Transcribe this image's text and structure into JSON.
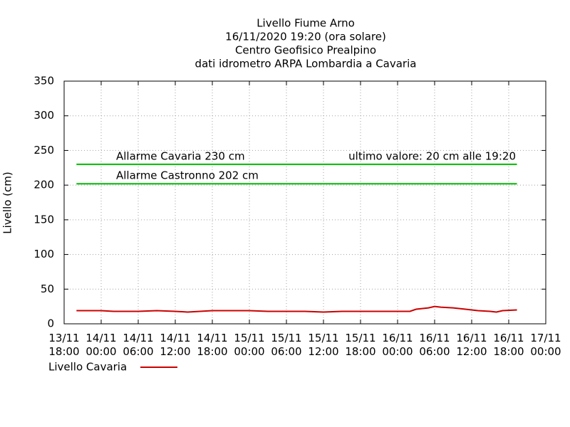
{
  "chart_data": {
    "type": "line",
    "title": [
      "Livello Fiume Arno",
      "16/11/2020 19:20 (ora solare)",
      "Centro Geofisico Prealpino",
      "dati idrometro ARPA Lombardia a Cavaria"
    ],
    "y_label": "Livello (cm)",
    "x": [
      "13/11 20:00",
      "14/11 00:00",
      "14/11 02:00",
      "14/11 06:00",
      "14/11 09:00",
      "14/11 12:00",
      "14/11 14:00",
      "14/11 16:00",
      "14/11 18:00",
      "14/11 21:00",
      "15/11 00:00",
      "15/11 03:00",
      "15/11 06:00",
      "15/11 09:00",
      "15/11 12:00",
      "15/11 15:00",
      "15/11 18:00",
      "15/11 21:00",
      "16/11 00:00",
      "16/11 02:00",
      "16/11 03:00",
      "16/11 05:00",
      "16/11 06:00",
      "16/11 07:00",
      "16/11 09:00",
      "16/11 11:00",
      "16/11 13:00",
      "16/11 15:00",
      "16/11 16:00",
      "16/11 17:00",
      "16/11 19:20"
    ],
    "series": [
      {
        "name": "Livello Cavaria",
        "color": "#cc0000",
        "values": [
          19,
          19,
          18,
          18,
          19,
          18,
          17,
          18,
          19,
          19,
          19,
          18,
          18,
          18,
          17,
          18,
          18,
          18,
          18,
          18,
          21,
          23,
          25,
          24,
          23,
          21,
          19,
          18,
          17,
          19,
          20
        ]
      }
    ],
    "thresholds": [
      {
        "label": "Allarme Cavaria 230 cm",
        "value": 230,
        "color": "#00bb00"
      },
      {
        "label": "Allarme Castronno 202 cm",
        "value": 202,
        "color": "#00bb00"
      }
    ],
    "annotation": "ultimo valore: 20 cm alle 19:20",
    "xlim": [
      "13/11 18:00",
      "17/11 00:00"
    ],
    "xticks": [
      "13/11 18:00",
      "14/11 00:00",
      "14/11 06:00",
      "14/11 12:00",
      "14/11 18:00",
      "15/11 00:00",
      "15/11 06:00",
      "15/11 12:00",
      "15/11 18:00",
      "16/11 00:00",
      "16/11 06:00",
      "16/11 12:00",
      "16/11 18:00",
      "17/11 00:00"
    ],
    "ylim": [
      0,
      350
    ],
    "yticks": [
      0,
      50,
      100,
      150,
      200,
      250,
      300,
      350
    ],
    "grid": true
  }
}
